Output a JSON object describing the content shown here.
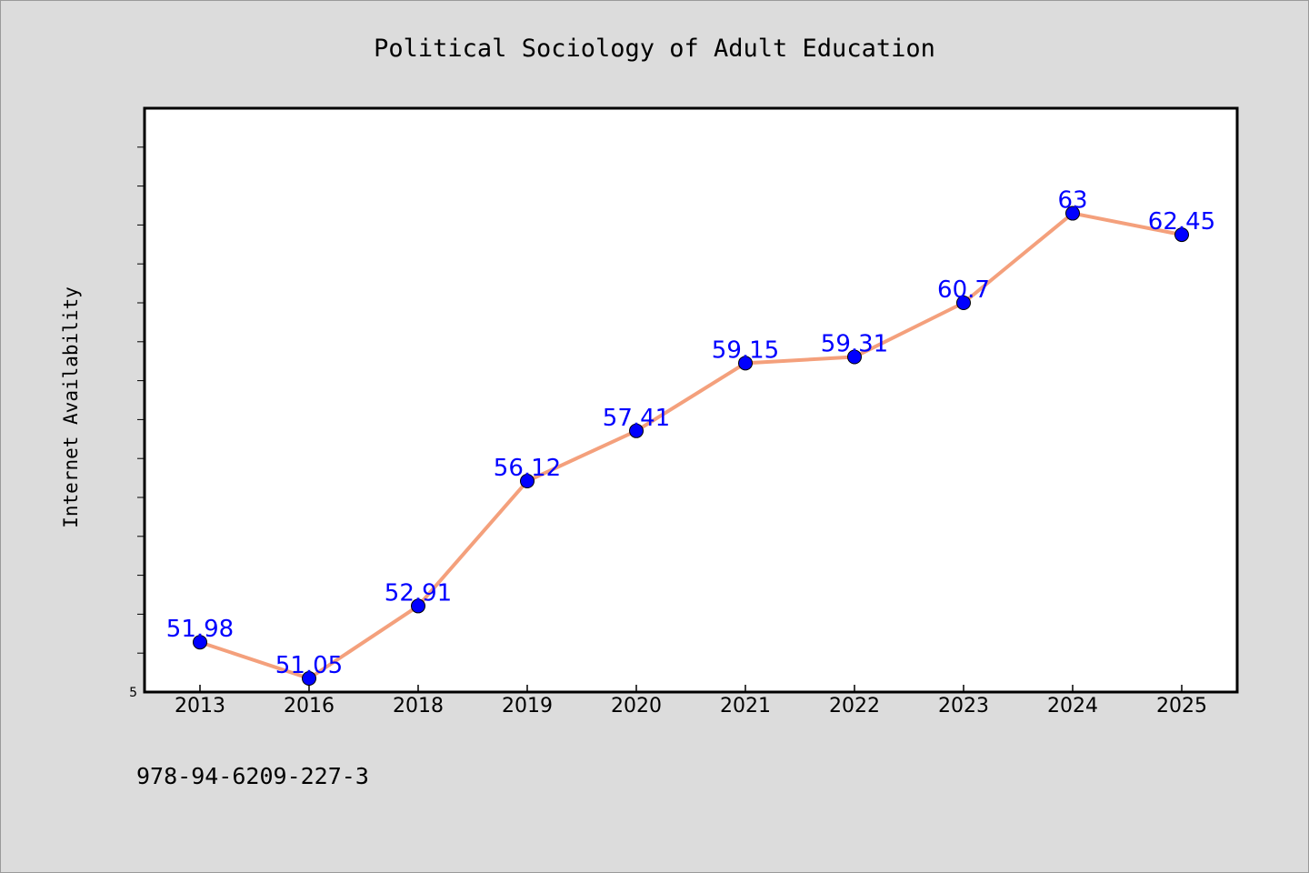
{
  "chart_data": {
    "type": "line",
    "title": "Political Sociology of Adult Education",
    "xlabel": "",
    "ylabel": "Internet Availability",
    "categories": [
      "2013",
      "2016",
      "2018",
      "2019",
      "2020",
      "2021",
      "2022",
      "2023",
      "2024",
      "2025"
    ],
    "series": [
      {
        "values": [
          51.98,
          51.05,
          52.91,
          56.12,
          57.41,
          59.15,
          59.31,
          60.7,
          63,
          62.45
        ],
        "labels": [
          "51.98",
          "51.05",
          "52.91",
          "56.12",
          "57.41",
          "59.15",
          "59.31",
          "60.7",
          "63",
          "62.45"
        ],
        "line_color": "#f4a07c",
        "marker_color": "#0000ff"
      }
    ],
    "y_tick_labels": [
      "5"
    ],
    "ylim": [
      50.7,
      65.7
    ],
    "grid": false,
    "legend": "none"
  },
  "footer": {
    "isbn": "978-94-6209-227-3"
  },
  "colors": {
    "background": "#dcdcdc",
    "plot_background": "#ffffff",
    "line": "#f4a07c",
    "marker": "#0000ff",
    "data_label": "#0000ff"
  }
}
